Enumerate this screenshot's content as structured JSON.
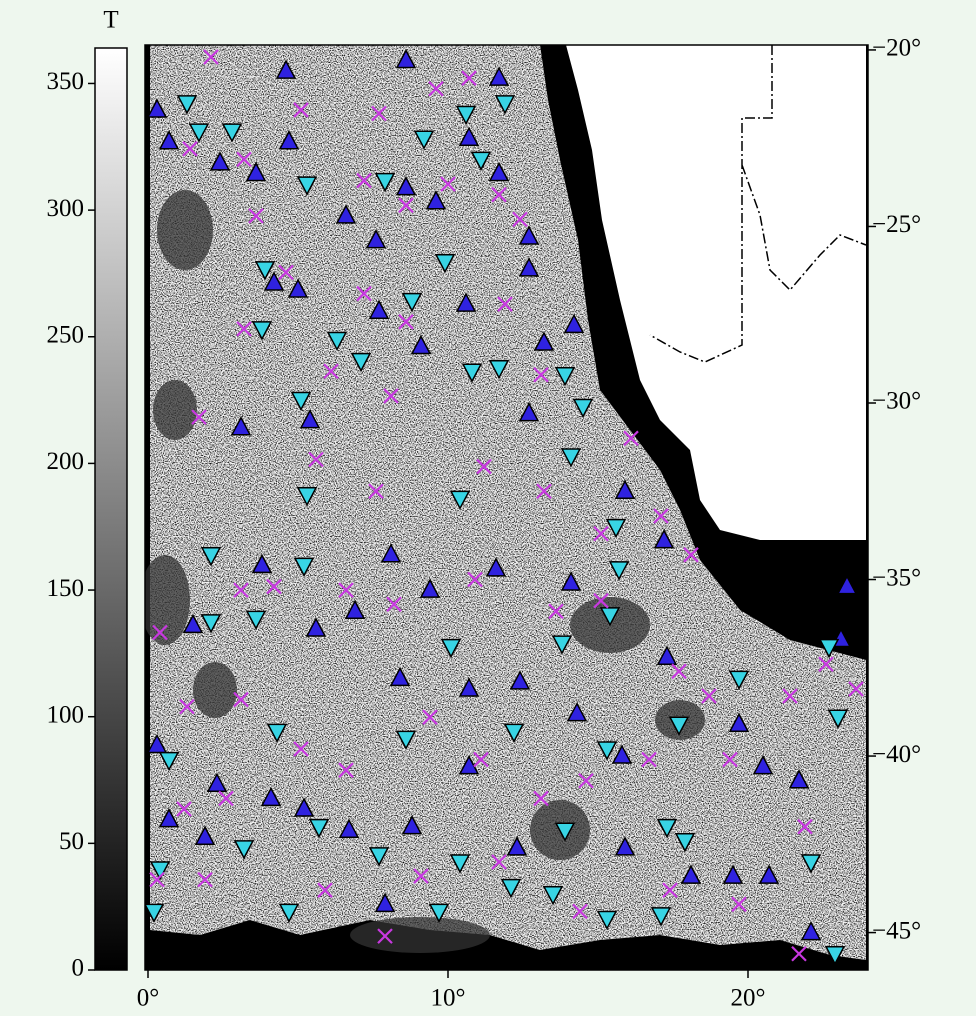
{
  "chart_data": {
    "type": "scatter",
    "xlim": [
      -0.1,
      24
    ],
    "ylim": [
      -46.06,
      -19.86
    ],
    "xticks": [
      {
        "value": 0,
        "label": "0°"
      },
      {
        "value": 10,
        "label": "10°"
      },
      {
        "value": 20,
        "label": "20°"
      }
    ],
    "yticks": [
      {
        "value": -20,
        "label": "−20°"
      },
      {
        "value": -25,
        "label": "−25°"
      },
      {
        "value": -30,
        "label": "−30°"
      },
      {
        "value": -35,
        "label": "−35°"
      },
      {
        "value": -40,
        "label": "−40°"
      },
      {
        "value": -45,
        "label": "−45°"
      }
    ],
    "colorbar": {
      "label": "T",
      "lim": [
        0,
        364
      ],
      "ticks": [
        0,
        50,
        100,
        150,
        200,
        250,
        300,
        350
      ],
      "colors": [
        "#000000",
        "#ffffff"
      ]
    },
    "series": [
      {
        "marker": "triangle-up",
        "color": "#2f22e0",
        "x": [
          4.6,
          8.6,
          0.3,
          0.7,
          2.4,
          3.6,
          4.7,
          11.7,
          10.7,
          11.7,
          8.6,
          9.6,
          6.6,
          7.6,
          4.2,
          5.0,
          12.7,
          12.7,
          7.7,
          9.1,
          10.6,
          13.2,
          14.2,
          3.1,
          5.4,
          12.7,
          15.9,
          17.2,
          8.1,
          9.4,
          14.1,
          11.6,
          3.8,
          1.5,
          5.6,
          6.9,
          8.4,
          10.7,
          12.4,
          14.3,
          15.8,
          17.3,
          19.7,
          20.5,
          21.7,
          2.3,
          4.1,
          5.2,
          6.7,
          8.8,
          10.7,
          12.3,
          15.9,
          18.1,
          19.5,
          20.7,
          22.1,
          23.3,
          7.9,
          23.1,
          1.9,
          0.3,
          0.7
        ],
        "y": [
          -20.6,
          -20.3,
          -21.7,
          -22.6,
          -23.2,
          -23.5,
          -22.6,
          -20.8,
          -22.5,
          -23.5,
          -23.9,
          -24.3,
          -24.7,
          -25.4,
          -26.6,
          -26.8,
          -25.3,
          -26.2,
          -27.4,
          -28.4,
          -27.2,
          -28.3,
          -27.8,
          -30.7,
          -30.5,
          -30.3,
          -32.5,
          -33.9,
          -34.3,
          -35.3,
          -35.1,
          -34.7,
          -34.6,
          -36.3,
          -36.4,
          -35.9,
          -37.8,
          -38.1,
          -37.9,
          -38.8,
          -40.0,
          -37.2,
          -39.1,
          -40.3,
          -40.7,
          -40.8,
          -41.2,
          -41.5,
          -42.1,
          -42.0,
          -40.3,
          -42.6,
          -42.6,
          -43.4,
          -43.4,
          -43.4,
          -45.0,
          -35.2,
          -44.2,
          -36.7,
          -42.3,
          -39.7,
          -41.8
        ]
      },
      {
        "marker": "triangle-down",
        "color": "#38d4e4",
        "x": [
          1.3,
          1.7,
          2.8,
          5.3,
          7.9,
          9.2,
          10.6,
          11.1,
          11.9,
          3.9,
          3.8,
          6.3,
          7.1,
          8.8,
          9.9,
          10.8,
          11.7,
          13.9,
          14.5,
          5.1,
          5.3,
          10.4,
          14.1,
          15.6,
          15.7,
          2.1,
          5.2,
          3.6,
          10.1,
          13.8,
          15.4,
          19.7,
          17.7,
          23.0,
          2.1,
          4.3,
          8.6,
          12.2,
          15.3,
          22.7,
          3.2,
          5.7,
          7.7,
          13.9,
          17.3,
          17.9,
          9.7,
          12.1,
          13.5,
          15.3,
          17.1,
          22.1,
          22.9,
          0.2,
          0.4,
          0.7,
          4.7,
          10.4
        ],
        "y": [
          -21.5,
          -22.3,
          -22.3,
          -23.8,
          -23.7,
          -22.5,
          -21.8,
          -23.1,
          -21.5,
          -26.2,
          -27.9,
          -28.2,
          -28.8,
          -27.1,
          -26.0,
          -29.1,
          -29.0,
          -29.2,
          -30.1,
          -29.9,
          -32.6,
          -32.7,
          -31.5,
          -33.5,
          -34.7,
          -34.3,
          -34.6,
          -36.1,
          -36.9,
          -36.8,
          -36.0,
          -37.8,
          -39.1,
          -38.9,
          -36.2,
          -39.3,
          -39.5,
          -39.3,
          -39.8,
          -36.9,
          -42.6,
          -42.0,
          -42.8,
          -42.1,
          -42.0,
          -42.4,
          -44.4,
          -43.7,
          -43.9,
          -44.6,
          -44.5,
          -43.0,
          -45.6,
          -44.4,
          -43.2,
          -40.1,
          -44.4,
          -43.0
        ]
      },
      {
        "marker": "x",
        "color": "#c838e0",
        "x": [
          2.1,
          5.1,
          7.7,
          9.6,
          10.7,
          1.4,
          3.2,
          7.2,
          8.6,
          10.0,
          11.7,
          3.6,
          12.4,
          4.6,
          7.2,
          8.6,
          3.2,
          6.1,
          8.1,
          13.1,
          11.9,
          1.7,
          5.6,
          7.6,
          11.2,
          13.2,
          15.1,
          17.1,
          18.1,
          16.1,
          3.1,
          4.2,
          6.6,
          8.2,
          10.9,
          13.6,
          15.1,
          17.7,
          18.7,
          21.4,
          22.6,
          23.6,
          1.3,
          3.1,
          5.1,
          6.6,
          9.4,
          11.1,
          13.1,
          14.6,
          16.7,
          19.4,
          21.9,
          1.2,
          2.6,
          1.9,
          5.9,
          9.1,
          11.7,
          14.4,
          17.4,
          19.7,
          21.7,
          7.9,
          0.3,
          0.4
        ],
        "y": [
          -20.2,
          -21.7,
          -21.8,
          -21.1,
          -20.8,
          -22.8,
          -23.1,
          -23.7,
          -24.4,
          -23.8,
          -24.1,
          -24.7,
          -24.8,
          -26.3,
          -26.9,
          -27.7,
          -27.9,
          -29.1,
          -29.8,
          -29.2,
          -27.2,
          -30.4,
          -31.6,
          -32.5,
          -31.8,
          -32.5,
          -33.7,
          -33.2,
          -34.3,
          -31.0,
          -35.3,
          -35.2,
          -35.3,
          -35.7,
          -35.0,
          -35.9,
          -35.6,
          -37.6,
          -38.3,
          -38.3,
          -37.4,
          -38.1,
          -38.6,
          -38.4,
          -39.8,
          -40.4,
          -38.9,
          -40.1,
          -41.2,
          -40.7,
          -40.1,
          -40.1,
          -42.0,
          -41.5,
          -41.2,
          -43.5,
          -43.8,
          -43.4,
          -43.0,
          -44.4,
          -43.8,
          -44.2,
          -45.6,
          -45.1,
          -43.5,
          -36.5
        ]
      }
    ]
  }
}
